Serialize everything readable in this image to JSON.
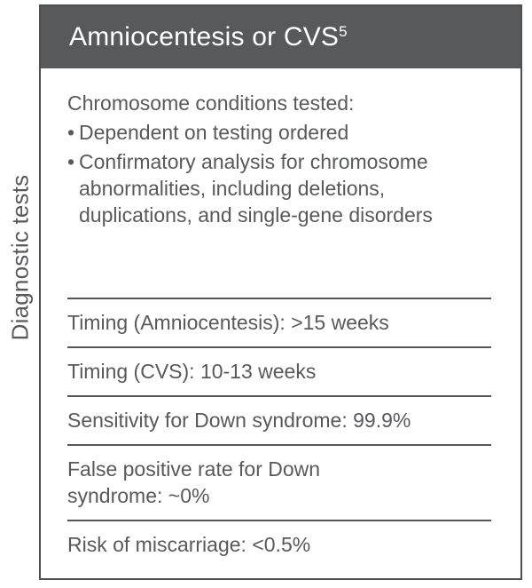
{
  "sidebar_label": "Diagnostic tests",
  "card": {
    "title": "Amniocentesis or CVS",
    "title_superscript": "5",
    "intro": "Chromosome conditions tested:",
    "bullets": [
      "Dependent on testing ordered",
      "Confirmatory analysis for chromosome abnormalities, including deletions, duplications, and single-gene disorders"
    ],
    "rows": [
      "Timing (Amniocentesis): >15 weeks",
      "Timing (CVS): 10-13 weeks",
      "Sensitivity for Down syndrome: 99.9%",
      "False positive rate for Down syndrome: ~0%",
      "Risk of miscarriage: <0.5%"
    ],
    "colors": {
      "header_bg": "#58595b",
      "header_text": "#ffffff",
      "body_text": "#58595b",
      "border": "#4f5052"
    }
  }
}
